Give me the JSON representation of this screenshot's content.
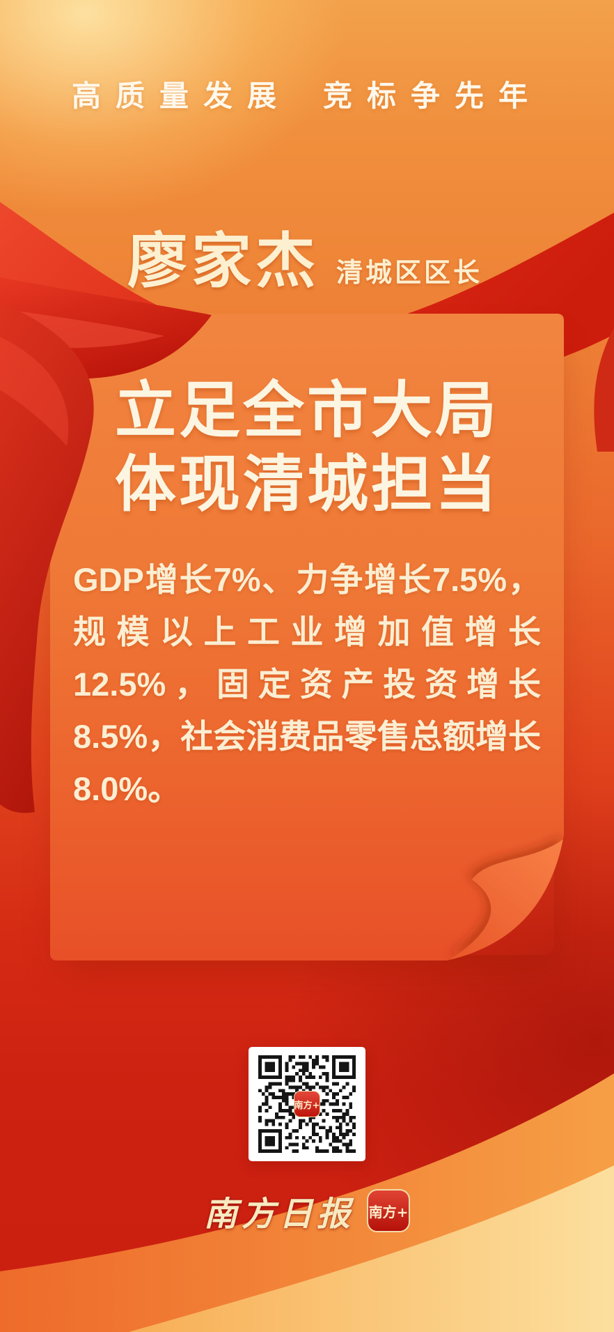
{
  "poster": {
    "header": {
      "slogan_left": "高质量发展",
      "slogan_right": "竞标争先年"
    },
    "speaker": {
      "name": "廖家杰",
      "title": "清城区区长"
    },
    "card": {
      "title_line1": "立足全市大局",
      "title_line2": "体现清城担当",
      "body": "GDP增长7%、力争增长7.5%，规模以上工业增加值增长12.5%，固定资产投资增长8.5%，社会消费品零售总额增长8.0%。"
    },
    "qr": {
      "center_logo": "南方+"
    },
    "footer": {
      "newspaper": "南方日报",
      "app_icon_label": "南方+"
    },
    "colors": {
      "background_top": "#f3a14b",
      "background_bottom": "#ca1f10",
      "card": "#f0823f",
      "ribbon_red": "#e3291a",
      "text_cream": "#fbeed2",
      "wave_orange": "#f69f46",
      "wave_gold": "#fcdf9e",
      "qr_background": "#ffffff",
      "brand_red": "#bd150b"
    }
  }
}
